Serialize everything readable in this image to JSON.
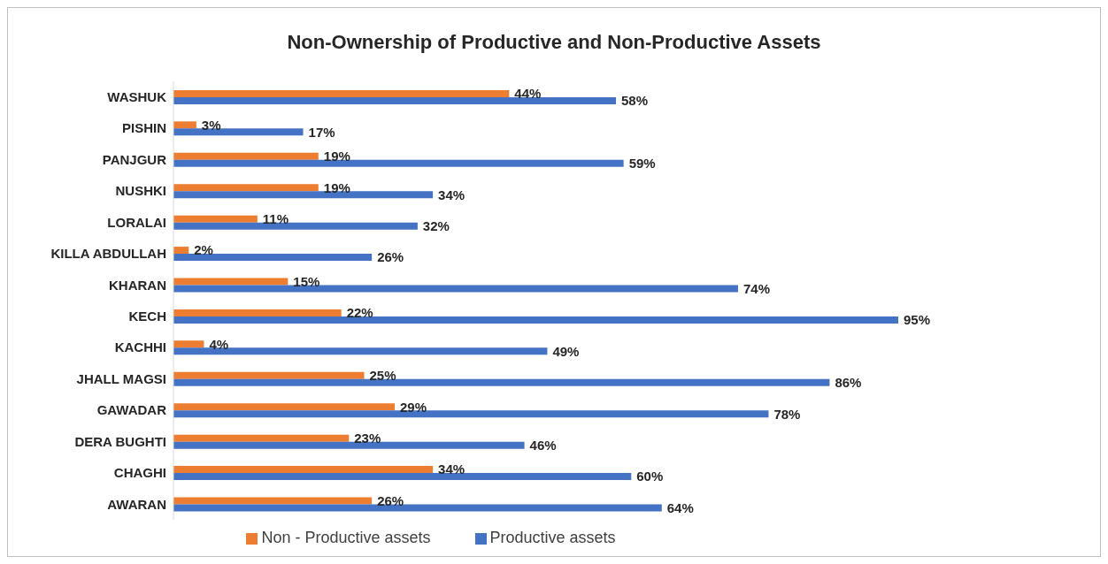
{
  "chart_data": {
    "type": "bar",
    "orientation": "horizontal",
    "title": "Non-Ownership of Productive and Non-Productive Assets",
    "categories": [
      "WASHUK",
      "PISHIN",
      "PANJGUR",
      "NUSHKI",
      "LORALAI",
      "KILLA ABDULLAH",
      "KHARAN",
      "KECH",
      "KACHHI",
      "JHALL MAGSI",
      "GAWADAR",
      "DERA BUGHTI",
      "CHAGHI",
      "AWARAN"
    ],
    "series": [
      {
        "name": "Non - Productive assets",
        "color": "#ed7d31",
        "values": [
          44,
          3,
          19,
          19,
          11,
          2,
          15,
          22,
          4,
          25,
          29,
          23,
          34,
          26
        ],
        "value_labels": [
          "44%",
          "3%",
          "19%",
          "19%",
          "11%",
          "2%",
          "15%",
          "22%",
          "4%",
          "25%",
          "29%",
          "23%",
          "34%",
          "26%"
        ]
      },
      {
        "name": "Productive assets",
        "color": "#4472c4",
        "values": [
          58,
          17,
          59,
          34,
          32,
          26,
          74,
          95,
          49,
          86,
          78,
          46,
          60,
          64
        ],
        "value_labels": [
          "58%",
          "17%",
          "59%",
          "34%",
          "32%",
          "26%",
          "74%",
          "95%",
          "49%",
          "86%",
          "78%",
          "46%",
          "60%",
          "64%"
        ]
      }
    ],
    "tick_labels": "y",
    "legend": "bottom",
    "grid": false
  }
}
